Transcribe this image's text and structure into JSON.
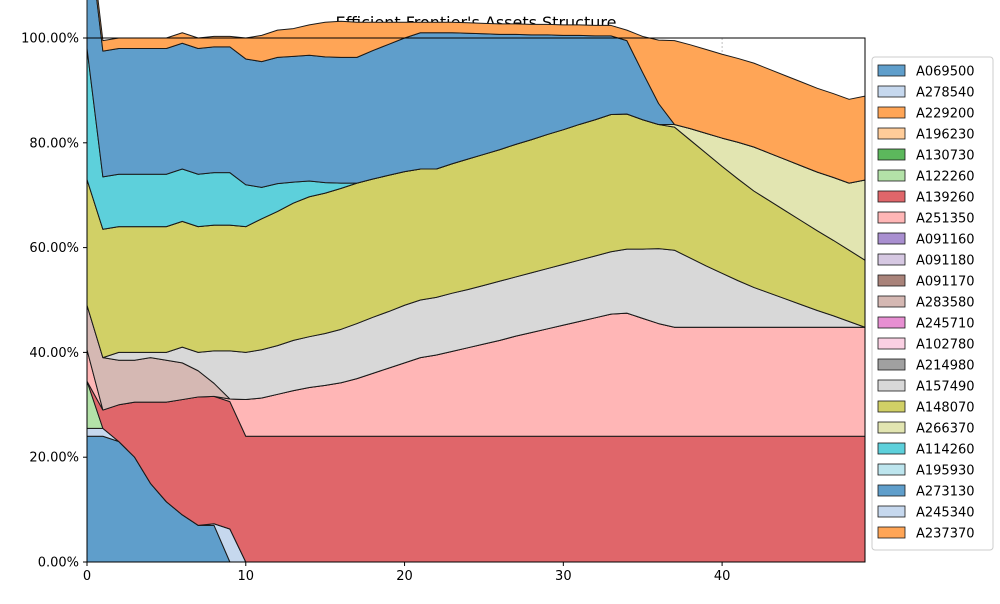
{
  "chart_data": {
    "type": "area",
    "title": "Efficient Frontier's Assets Structure",
    "xlabel": "",
    "ylabel": "",
    "xlim": [
      0,
      49
    ],
    "ylim": [
      0,
      100
    ],
    "x_ticks": [
      0,
      10,
      20,
      30,
      40
    ],
    "y_ticks": [
      0,
      20,
      40,
      60,
      80,
      100
    ],
    "y_tick_labels": [
      "0.00%",
      "20.00%",
      "40.00%",
      "60.00%",
      "80.00%",
      "100.00%"
    ],
    "grid": true,
    "legend_position": "right",
    "x": [
      0,
      1,
      2,
      3,
      4,
      5,
      6,
      7,
      8,
      9,
      10,
      11,
      12,
      13,
      14,
      15,
      16,
      17,
      18,
      19,
      20,
      21,
      22,
      23,
      24,
      25,
      26,
      27,
      28,
      29,
      30,
      31,
      32,
      33,
      34,
      35,
      36,
      37,
      38,
      39,
      40,
      41,
      42,
      43,
      44,
      45,
      46,
      47,
      48,
      49
    ],
    "series": [
      {
        "name": "A069500",
        "color": "#5f9ecb",
        "values": [
          24,
          24,
          23,
          20,
          15,
          11.5,
          9,
          7,
          7,
          0,
          0,
          0,
          0,
          0,
          0,
          0,
          0,
          0,
          0,
          0,
          0,
          0,
          0,
          0,
          0,
          0,
          0,
          0,
          0,
          0,
          0,
          0,
          0,
          0,
          0,
          0,
          0,
          0,
          0,
          0,
          0,
          0,
          0,
          0,
          0,
          0,
          0,
          0,
          0,
          0
        ]
      },
      {
        "name": "A278540",
        "color": "#c6d8ee",
        "values": [
          1.5,
          1.5,
          0,
          0,
          0,
          0,
          0,
          0,
          0.3,
          6.3,
          0,
          0,
          0,
          0,
          0,
          0,
          0,
          0,
          0,
          0,
          0,
          0,
          0,
          0,
          0,
          0,
          0,
          0,
          0,
          0,
          0,
          0,
          0,
          0,
          0,
          0,
          0,
          0,
          0,
          0,
          0,
          0,
          0,
          0,
          0,
          0,
          0,
          0,
          0,
          0
        ]
      },
      {
        "name": "A229200",
        "color": "#ffa556",
        "values": [
          0,
          0,
          0,
          0,
          0,
          0,
          0,
          0,
          0,
          0,
          0,
          0,
          0,
          0,
          0,
          0,
          0,
          0,
          0,
          0,
          0,
          0,
          0,
          0,
          0,
          0,
          0,
          0,
          0,
          0,
          0,
          0,
          0,
          0,
          0,
          0,
          0,
          0,
          0,
          0,
          0,
          0,
          0,
          0,
          0,
          0,
          0,
          0,
          0,
          0
        ]
      },
      {
        "name": "A196230",
        "color": "#ffcc99",
        "values": [
          0,
          0,
          0,
          0,
          0,
          0,
          0,
          0,
          0,
          0,
          0,
          0,
          0,
          0,
          0,
          0,
          0,
          0,
          0,
          0,
          0,
          0,
          0,
          0,
          0,
          0,
          0,
          0,
          0,
          0,
          0,
          0,
          0,
          0,
          0,
          0,
          0,
          0,
          0,
          0,
          0,
          0,
          0,
          0,
          0,
          0,
          0,
          0,
          0,
          0
        ]
      },
      {
        "name": "A130730",
        "color": "#5cb85c",
        "values": [
          0,
          0,
          0,
          0,
          0,
          0,
          0,
          0,
          0,
          0,
          0,
          0,
          0,
          0,
          0,
          0,
          0,
          0,
          0,
          0,
          0,
          0,
          0,
          0,
          0,
          0,
          0,
          0,
          0,
          0,
          0,
          0,
          0,
          0,
          0,
          0,
          0,
          0,
          0,
          0,
          0,
          0,
          0,
          0,
          0,
          0,
          0,
          0,
          0,
          0
        ]
      },
      {
        "name": "A122260",
        "color": "#b3e2a8",
        "values": [
          9,
          0,
          0,
          0,
          0,
          0,
          0,
          0,
          0,
          0,
          0,
          0,
          0,
          0,
          0,
          0,
          0,
          0,
          0,
          0,
          0,
          0,
          0,
          0,
          0,
          0,
          0,
          0,
          0,
          0,
          0,
          0,
          0,
          0,
          0,
          0,
          0,
          0,
          0,
          0,
          0,
          0,
          0,
          0,
          0,
          0,
          0,
          0,
          0,
          0
        ]
      },
      {
        "name": "A139260",
        "color": "#e0666a",
        "values": [
          0,
          3.5,
          7,
          10.5,
          15.5,
          19,
          22,
          24.5,
          24.3,
          24.3,
          24,
          24,
          24,
          24,
          24,
          24,
          24,
          24,
          24,
          24,
          24,
          24,
          24,
          24,
          24,
          24,
          24,
          24,
          24,
          24,
          24,
          24,
          24,
          24,
          24,
          24,
          24,
          24,
          24,
          24,
          24,
          24,
          24,
          24,
          24,
          24,
          24,
          24,
          24,
          24
        ]
      },
      {
        "name": "A251350",
        "color": "#ffb6b6",
        "values": [
          6,
          0,
          0,
          0,
          0,
          0,
          0,
          0,
          0,
          0.5,
          7,
          7.3,
          8,
          8.7,
          9.3,
          9.7,
          10.2,
          11,
          12,
          13,
          14,
          15,
          15.5,
          16.2,
          16.9,
          17.6,
          18.3,
          19.1,
          19.8,
          20.5,
          21.2,
          21.9,
          22.6,
          23.3,
          23.5,
          22.5,
          21.5,
          20.8,
          20.8,
          20.8,
          20.8,
          20.8,
          20.8,
          20.8,
          20.8,
          20.8,
          20.8,
          20.8,
          20.8,
          20.8
        ]
      },
      {
        "name": "A091160",
        "color": "#a98fd0",
        "values": [
          0,
          0,
          0,
          0,
          0,
          0,
          0,
          0,
          0,
          0,
          0,
          0,
          0,
          0,
          0,
          0,
          0,
          0,
          0,
          0,
          0,
          0,
          0,
          0,
          0,
          0,
          0,
          0,
          0,
          0,
          0,
          0,
          0,
          0,
          0,
          0,
          0,
          0,
          0,
          0,
          0,
          0,
          0,
          0,
          0,
          0,
          0,
          0,
          0,
          0
        ]
      },
      {
        "name": "A091180",
        "color": "#d6c8e2",
        "values": [
          0,
          0,
          0,
          0,
          0,
          0,
          0,
          0,
          0,
          0,
          0,
          0,
          0,
          0,
          0,
          0,
          0,
          0,
          0,
          0,
          0,
          0,
          0,
          0,
          0,
          0,
          0,
          0,
          0,
          0,
          0,
          0,
          0,
          0,
          0,
          0,
          0,
          0,
          0,
          0,
          0,
          0,
          0,
          0,
          0,
          0,
          0,
          0,
          0,
          0
        ]
      },
      {
        "name": "A091170",
        "color": "#a9837a",
        "values": [
          0,
          0,
          0,
          0,
          0,
          0,
          0,
          0,
          0,
          0,
          0,
          0,
          0,
          0,
          0,
          0,
          0,
          0,
          0,
          0,
          0,
          0,
          0,
          0,
          0,
          0,
          0,
          0,
          0,
          0,
          0,
          0,
          0,
          0,
          0,
          0,
          0,
          0,
          0,
          0,
          0,
          0,
          0,
          0,
          0,
          0,
          0,
          0,
          0,
          0
        ]
      },
      {
        "name": "A283580",
        "color": "#d5b8b3",
        "values": [
          8.5,
          10,
          8.5,
          8,
          8.5,
          8,
          7,
          5,
          2.5,
          0,
          0,
          0,
          0,
          0,
          0,
          0,
          0,
          0,
          0,
          0,
          0,
          0,
          0,
          0,
          0,
          0,
          0,
          0,
          0,
          0,
          0,
          0,
          0,
          0,
          0,
          0,
          0,
          0,
          0,
          0,
          0,
          0,
          0,
          0,
          0,
          0,
          0,
          0,
          0,
          0
        ]
      },
      {
        "name": "A245710",
        "color": "#e78fd2",
        "values": [
          0,
          0,
          0,
          0,
          0,
          0,
          0,
          0,
          0,
          0,
          0,
          0,
          0,
          0,
          0,
          0,
          0,
          0,
          0,
          0,
          0,
          0,
          0,
          0,
          0,
          0,
          0,
          0,
          0,
          0,
          0,
          0,
          0,
          0,
          0,
          0,
          0,
          0,
          0,
          0,
          0,
          0,
          0,
          0,
          0,
          0,
          0,
          0,
          0,
          0
        ]
      },
      {
        "name": "A102780",
        "color": "#fad0e3",
        "values": [
          0,
          0,
          0,
          0,
          0,
          0,
          0,
          0,
          0,
          0,
          0,
          0,
          0,
          0,
          0,
          0,
          0,
          0,
          0,
          0,
          0,
          0,
          0,
          0,
          0,
          0,
          0,
          0,
          0,
          0,
          0,
          0,
          0,
          0,
          0,
          0,
          0,
          0,
          0,
          0,
          0,
          0,
          0,
          0,
          0,
          0,
          0,
          0,
          0,
          0
        ]
      },
      {
        "name": "A214980",
        "color": "#a0a0a0",
        "values": [
          0,
          0,
          0,
          0,
          0,
          0,
          0,
          0,
          0,
          0,
          0,
          0,
          0,
          0,
          0,
          0,
          0,
          0,
          0,
          0,
          0,
          0,
          0,
          0,
          0,
          0,
          0,
          0,
          0,
          0,
          0,
          0,
          0,
          0,
          0,
          0,
          0,
          0,
          0,
          0,
          0,
          0,
          0,
          0,
          0,
          0,
          0,
          0,
          0,
          0
        ]
      },
      {
        "name": "A157490",
        "color": "#d8d8d8",
        "values": [
          0,
          0,
          1.5,
          1.5,
          1,
          1.5,
          3,
          3.5,
          6.2,
          9.2,
          9,
          9.2,
          9.3,
          9.6,
          9.7,
          9.9,
          10.2,
          10.5,
          10.7,
          10.8,
          11,
          11,
          11,
          11.1,
          11.1,
          11.2,
          11.3,
          11.3,
          11.4,
          11.5,
          11.6,
          11.7,
          11.8,
          11.9,
          12.2,
          13.2,
          14.3,
          14.7,
          13.2,
          11.7,
          10.3,
          8.9,
          7.6,
          6.5,
          5.4,
          4.3,
          3.2,
          2.2,
          1.1,
          0
        ]
      },
      {
        "name": "A148070",
        "color": "#d1d066",
        "values": [
          24,
          24.5,
          24,
          24,
          24,
          24,
          24,
          24,
          24,
          24,
          24,
          25,
          25.6,
          26.2,
          26.7,
          26.8,
          26.9,
          26.8,
          26.4,
          26,
          25.5,
          25,
          24.5,
          24.7,
          24.9,
          25,
          25.1,
          25.3,
          25.4,
          25.6,
          25.7,
          25.9,
          26,
          26.2,
          25.8,
          24.7,
          23.7,
          23.5,
          22.5,
          21.5,
          20.4,
          19.4,
          18.4,
          17.6,
          16.8,
          16,
          15.2,
          14.4,
          13.6,
          12.8
        ]
      },
      {
        "name": "A266370",
        "color": "#e2e5b1",
        "values": [
          0,
          0,
          0,
          0,
          0,
          0,
          0,
          0,
          0,
          0,
          0,
          0,
          0,
          0,
          0,
          0,
          0,
          0,
          0,
          0,
          0,
          0,
          0,
          0,
          0,
          0,
          0,
          0,
          0,
          0,
          0,
          0,
          0,
          0,
          0,
          0,
          0,
          0.5,
          2.2,
          3.8,
          5.4,
          7,
          8.4,
          9.1,
          9.8,
          10.5,
          11.2,
          12,
          12.8,
          15.3
        ]
      },
      {
        "name": "A114260",
        "color": "#5dd0db",
        "values": [
          25,
          10,
          10,
          10,
          10,
          10,
          10,
          10,
          10,
          10,
          8,
          6,
          5.3,
          4,
          3,
          2,
          1,
          0,
          0,
          0,
          0,
          0,
          0,
          0,
          0,
          0,
          0,
          0,
          0,
          0,
          0,
          0,
          0,
          0,
          0,
          0,
          0,
          0,
          0,
          0,
          0,
          0,
          0,
          0,
          0,
          0,
          0,
          0,
          0,
          0
        ]
      },
      {
        "name": "A195930",
        "color": "#bde5ee",
        "values": [
          0,
          0,
          0,
          0,
          0,
          0,
          0,
          0,
          0,
          0,
          0,
          0,
          0,
          0,
          0,
          0,
          0,
          0,
          0,
          0,
          0,
          0,
          0,
          0,
          0,
          0,
          0,
          0,
          0,
          0,
          0,
          0,
          0,
          0,
          0,
          0,
          0,
          0,
          0,
          0,
          0,
          0,
          0,
          0,
          0,
          0,
          0,
          0,
          0,
          0
        ]
      },
      {
        "name": "A273130",
        "color": "#5f9ecb",
        "values": [
          25,
          24,
          24,
          24,
          24,
          24,
          24,
          24,
          24,
          24,
          24,
          24,
          24.1,
          24,
          24,
          24,
          24,
          24,
          24.5,
          25,
          25.5,
          26,
          26,
          25,
          24,
          23,
          22,
          21,
          20,
          19,
          18,
          17,
          16,
          15,
          14,
          9,
          4,
          0,
          0,
          0,
          0,
          0,
          0,
          0,
          0,
          0,
          0,
          0,
          0,
          0
        ]
      },
      {
        "name": "A245340",
        "color": "#c6d8ee",
        "values": [
          0,
          0,
          0,
          0,
          0,
          0,
          0,
          0,
          0,
          0,
          0,
          0,
          0,
          0,
          0,
          0,
          0,
          0,
          0,
          0,
          0,
          0,
          0,
          0,
          0,
          0,
          0,
          0,
          0,
          0,
          0,
          0,
          0,
          0,
          0,
          0,
          0,
          0,
          0,
          0,
          0,
          0,
          0,
          0,
          0,
          0,
          0,
          0,
          0,
          0
        ]
      },
      {
        "name": "A237370",
        "color": "#ffa556",
        "values": [
          2,
          2,
          2,
          2,
          2,
          2,
          2,
          2,
          2,
          2,
          4,
          5,
          5.2,
          5.3,
          5.8,
          6.6,
          6.9,
          6.7,
          5.4,
          4.2,
          3,
          2,
          2,
          2,
          2,
          2,
          2,
          2,
          2,
          2,
          2,
          2,
          2,
          2,
          2,
          6.9,
          12.1,
          16,
          16,
          16,
          16,
          16,
          16,
          16,
          16,
          16,
          16,
          16,
          16,
          16
        ]
      }
    ]
  }
}
